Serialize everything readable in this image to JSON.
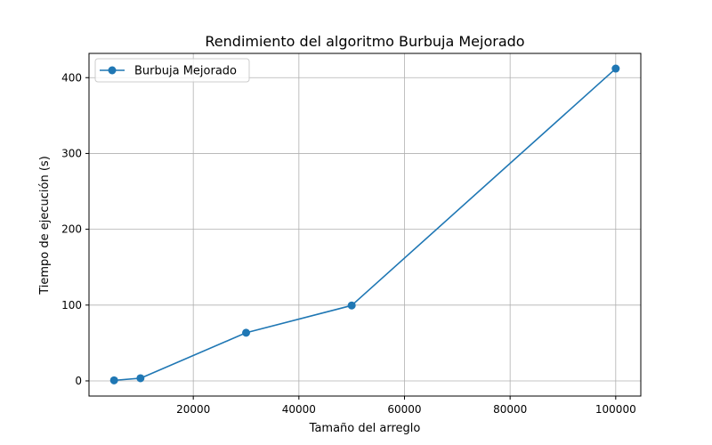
{
  "chart_data": {
    "type": "line",
    "title": "Rendimiento del algoritmo Burbuja Mejorado",
    "xlabel": "Tamaño del arreglo",
    "ylabel": "Tiempo de ejecución (s)",
    "x": [
      5000,
      10000,
      30000,
      50000,
      100000
    ],
    "series": [
      {
        "name": "Burbuja Mejorado",
        "color": "#1f77b4",
        "marker": "circle",
        "values": [
          0.7,
          3.5,
          63.5,
          99.5,
          412
        ]
      }
    ],
    "xlim": [
      250,
      104750
    ],
    "ylim": [
      -20,
      432
    ],
    "xticks": [
      20000,
      40000,
      60000,
      80000,
      100000
    ],
    "xtick_labels": [
      "20000",
      "40000",
      "60000",
      "80000",
      "100000"
    ],
    "yticks": [
      0,
      100,
      200,
      300,
      400
    ],
    "ytick_labels": [
      "0",
      "100",
      "200",
      "300",
      "400"
    ],
    "grid": true,
    "legend_position": "top-left"
  }
}
